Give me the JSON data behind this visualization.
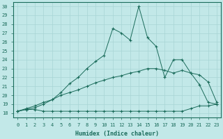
{
  "xlabel": "Humidex (Indice chaleur)",
  "bg_color": "#c2e8e8",
  "line_color": "#1a6b5a",
  "xlim": [
    -0.5,
    23.5
  ],
  "ylim": [
    17.5,
    30.5
  ],
  "xticks": [
    0,
    1,
    2,
    3,
    4,
    5,
    6,
    7,
    8,
    9,
    10,
    11,
    12,
    13,
    14,
    15,
    16,
    17,
    18,
    19,
    20,
    21,
    22,
    23
  ],
  "yticks": [
    18,
    19,
    20,
    21,
    22,
    23,
    24,
    25,
    26,
    27,
    28,
    29,
    30
  ],
  "grid_color": "#a8d4d4",
  "series": [
    {
      "x": [
        0,
        1,
        2,
        3,
        4,
        5,
        6,
        7,
        8,
        9,
        10,
        11,
        12,
        13,
        14,
        15,
        16,
        17,
        18,
        19,
        20,
        21,
        22,
        23
      ],
      "y": [
        18.2,
        18.4,
        18.4,
        18.2,
        18.2,
        18.2,
        18.2,
        18.2,
        18.2,
        18.2,
        18.2,
        18.2,
        18.2,
        18.2,
        18.2,
        18.2,
        18.2,
        18.2,
        18.2,
        18.2,
        18.5,
        18.8,
        18.8,
        19.0
      ]
    },
    {
      "x": [
        0,
        1,
        2,
        3,
        4,
        5,
        6,
        7,
        8,
        9,
        10,
        11,
        12,
        13,
        14,
        15,
        16,
        17,
        18,
        19,
        20,
        21,
        22,
        23
      ],
      "y": [
        18.2,
        18.4,
        18.6,
        19.0,
        19.5,
        20.0,
        20.3,
        20.6,
        21.0,
        21.4,
        21.7,
        22.0,
        22.2,
        22.5,
        22.7,
        23.0,
        23.0,
        22.8,
        22.5,
        22.8,
        22.5,
        22.3,
        21.5,
        19.2
      ]
    },
    {
      "x": [
        0,
        1,
        2,
        3,
        4,
        5,
        6,
        7,
        8,
        9,
        10,
        11,
        12,
        13,
        14,
        15,
        16,
        17,
        18,
        19,
        20,
        21,
        22,
        23
      ],
      "y": [
        18.2,
        18.5,
        18.8,
        19.2,
        19.5,
        20.3,
        21.3,
        22.0,
        23.0,
        23.8,
        24.5,
        27.5,
        27.0,
        26.2,
        30.0,
        26.5,
        25.5,
        22.0,
        24.0,
        24.0,
        22.5,
        21.2,
        19.2,
        19.0
      ]
    }
  ]
}
